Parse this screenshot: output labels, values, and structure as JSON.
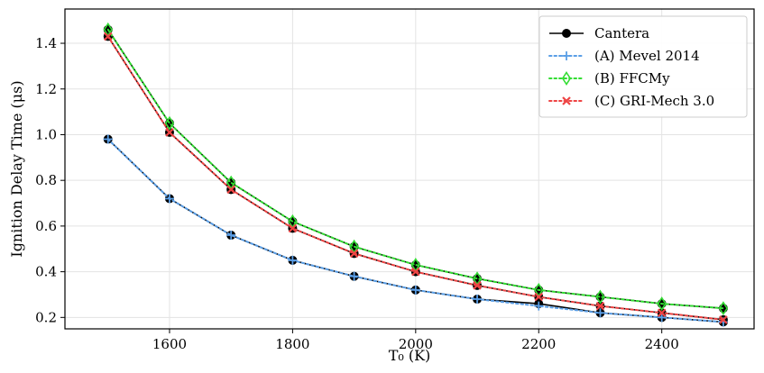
{
  "chart_data": {
    "type": "line",
    "xlabel": "T₀ (K)",
    "ylabel": "Ignition Delay Time (μs)",
    "xlim": [
      1430,
      2550
    ],
    "ylim": [
      0.15,
      1.55
    ],
    "xticks": [
      1600,
      1800,
      2000,
      2200,
      2400
    ],
    "yticks": [
      0.2,
      0.4,
      0.6,
      0.8,
      1.0,
      1.2,
      1.4
    ],
    "ytick_labels": [
      "0.2",
      "0.4",
      "0.6",
      "0.8",
      "1.0",
      "1.2",
      "1.4"
    ],
    "grid": true,
    "legend_position": "top-right",
    "x": [
      1500,
      1600,
      1700,
      1800,
      1900,
      2000,
      2100,
      2200,
      2300,
      2400,
      2500
    ],
    "series": [
      {
        "name": "Cantera",
        "color": "#000000",
        "style": "solid",
        "marker": "circle",
        "groups": [
          [
            0.98,
            0.72,
            0.56,
            0.45,
            0.38,
            0.32,
            0.28,
            0.26,
            0.22,
            0.2,
            0.18
          ],
          [
            1.46,
            1.05,
            0.79,
            0.62,
            0.51,
            0.43,
            0.37,
            0.32,
            0.29,
            0.26,
            0.24
          ],
          [
            1.43,
            1.01,
            0.76,
            0.59,
            0.48,
            0.4,
            0.34,
            0.29,
            0.25,
            0.22,
            0.19
          ]
        ]
      },
      {
        "name": "(A) Mevel 2014",
        "color": "#5a9ee6",
        "style": "dotted",
        "marker": "plus",
        "values": [
          0.98,
          0.72,
          0.56,
          0.45,
          0.38,
          0.32,
          0.28,
          0.25,
          0.22,
          0.2,
          0.18
        ]
      },
      {
        "name": "(B) FFCMy",
        "color": "#33dd33",
        "style": "dotted",
        "marker": "diamond",
        "values": [
          1.46,
          1.05,
          0.79,
          0.62,
          0.51,
          0.43,
          0.37,
          0.32,
          0.29,
          0.26,
          0.24
        ]
      },
      {
        "name": "(C) GRI-Mech 3.0",
        "color": "#ee4444",
        "style": "dotted",
        "marker": "x",
        "values": [
          1.43,
          1.01,
          0.76,
          0.59,
          0.48,
          0.4,
          0.34,
          0.29,
          0.25,
          0.22,
          0.19
        ]
      }
    ]
  }
}
